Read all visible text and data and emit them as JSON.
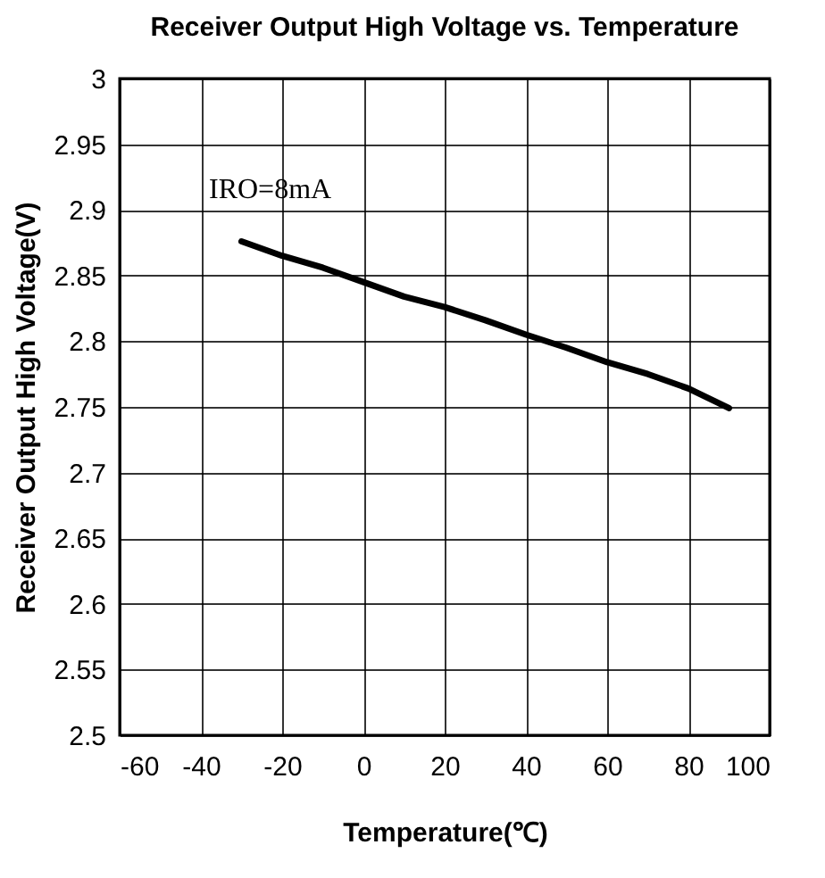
{
  "chart_data": {
    "type": "line",
    "title": "Receiver Output High Voltage vs. Temperature",
    "xlabel": "Temperature(℃)",
    "ylabel": "Receiver Output High Voltage(V)",
    "annotations": [
      "IRO=8mA"
    ],
    "x": [
      -30,
      -20,
      -10,
      0,
      10,
      20,
      30,
      40,
      50,
      60,
      70,
      80,
      90
    ],
    "series": [
      {
        "color": "#000000",
        "values": [
          2.876,
          2.865,
          2.856,
          2.845,
          2.834,
          2.826,
          2.816,
          2.805,
          2.795,
          2.784,
          2.775,
          2.764,
          2.749
        ]
      }
    ],
    "xlim": [
      -60,
      100
    ],
    "xticks": [
      -60,
      -40,
      -20,
      0,
      20,
      40,
      60,
      80,
      100
    ],
    "ylim": [
      2.5,
      3
    ],
    "yticks": [
      2.5,
      2.55,
      2.6,
      2.65,
      2.7,
      2.75,
      2.8,
      2.85,
      2.9,
      2.95,
      3
    ],
    "grid": true,
    "marker": "none",
    "line_style": "solid"
  }
}
